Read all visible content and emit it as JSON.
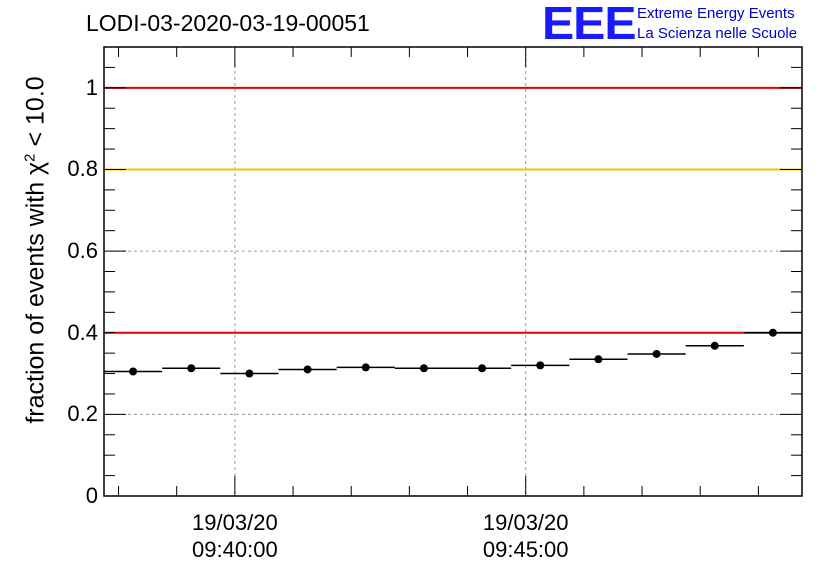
{
  "header": {
    "title": "LODI-03-2020-03-19-00051"
  },
  "logo": {
    "mark": "EEE",
    "line1": "Extreme Energy Events",
    "line2": "La Scienza nelle Scuole",
    "color": "#0000cc"
  },
  "chart_data": {
    "type": "scatter",
    "title": "LODI-03-2020-03-19-00051",
    "ylabel": {
      "prefix": "fraction of events with χ",
      "superscript": "2",
      "suffix": " < 10.0"
    },
    "ylim": [
      0,
      1.1
    ],
    "yticks": [
      {
        "value": 0,
        "label": "0"
      },
      {
        "value": 0.2,
        "label": "0.2"
      },
      {
        "value": 0.4,
        "label": "0.4"
      },
      {
        "value": 0.6,
        "label": "0.6"
      },
      {
        "value": 0.8,
        "label": "0.8"
      },
      {
        "value": 1,
        "label": "1"
      }
    ],
    "xticks": [
      {
        "time": "09:40:00",
        "line1": "19/03/20",
        "line2": "09:40:00"
      },
      {
        "time": "09:45:00",
        "line1": "19/03/20",
        "line2": "09:45:00"
      }
    ],
    "x_range": [
      "09:37:45",
      "09:49:45"
    ],
    "grid": true,
    "reference_lines": [
      {
        "value": 1.0,
        "color": "#e00000"
      },
      {
        "value": 0.8,
        "color": "#f5c000"
      },
      {
        "value": 0.4,
        "color": "#e00000"
      }
    ],
    "series": [
      {
        "marker_color": "#000000",
        "points": [
          {
            "x": "09:38:15",
            "y": 0.305
          },
          {
            "x": "09:39:15",
            "y": 0.313
          },
          {
            "x": "09:40:15",
            "y": 0.3
          },
          {
            "x": "09:41:15",
            "y": 0.31
          },
          {
            "x": "09:42:15",
            "y": 0.315
          },
          {
            "x": "09:43:15",
            "y": 0.313
          },
          {
            "x": "09:44:15",
            "y": 0.313
          },
          {
            "x": "09:45:15",
            "y": 0.32
          },
          {
            "x": "09:46:15",
            "y": 0.335
          },
          {
            "x": "09:47:15",
            "y": 0.348
          },
          {
            "x": "09:48:15",
            "y": 0.368
          },
          {
            "x": "09:49:15",
            "y": 0.4
          }
        ]
      }
    ]
  }
}
